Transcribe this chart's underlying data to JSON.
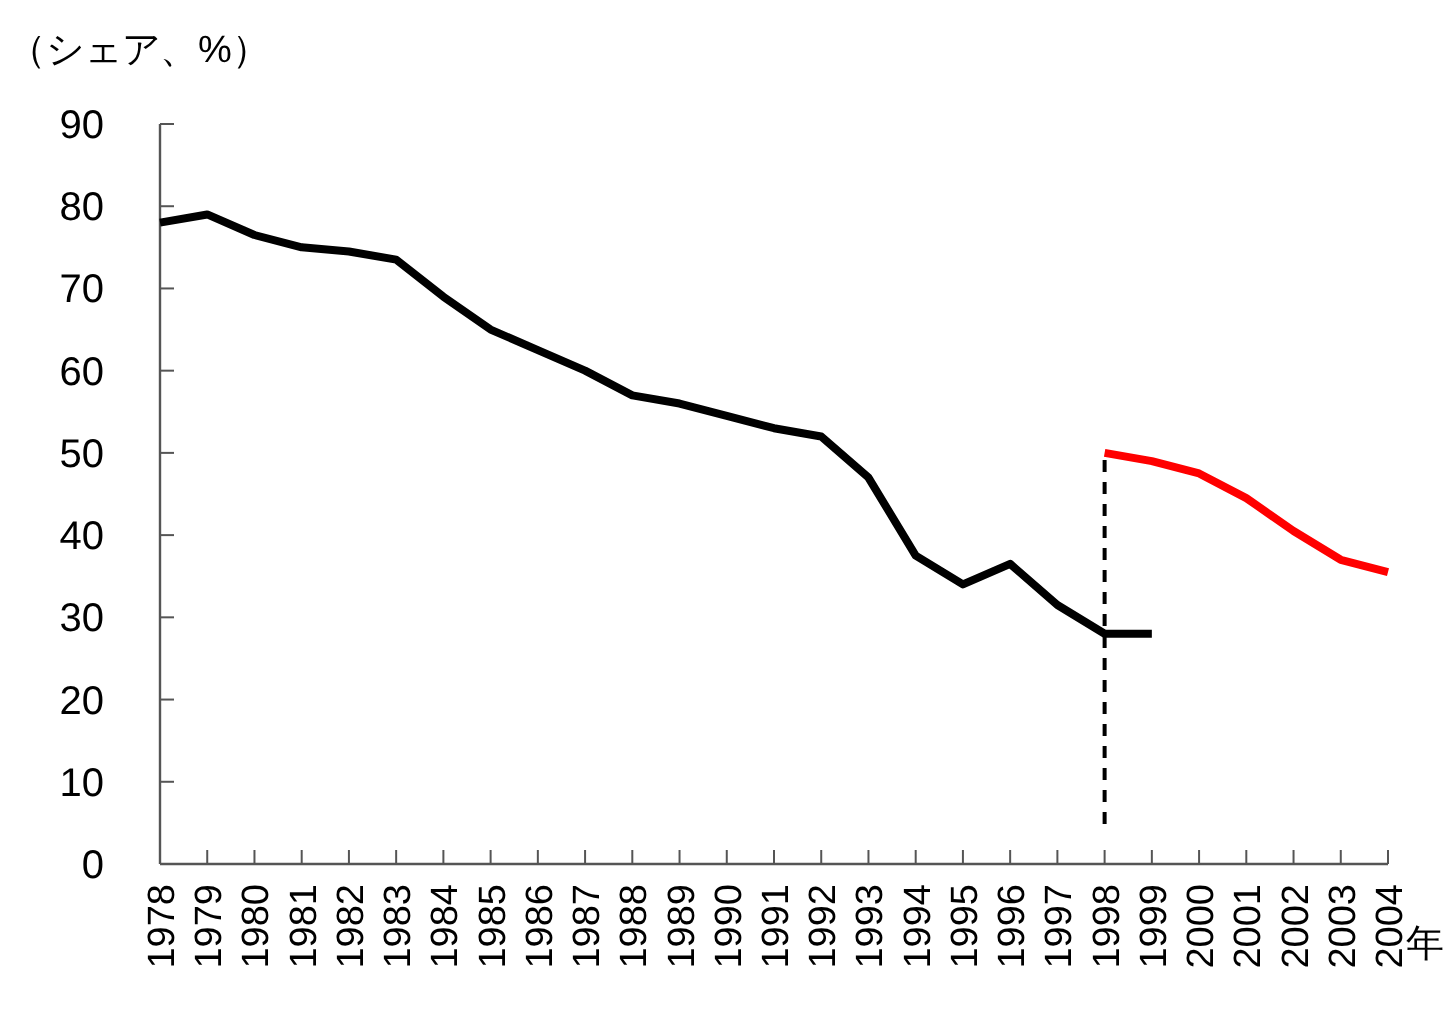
{
  "chart_data": {
    "type": "line",
    "ylabel": "（シェア、%）",
    "xlabel": "年",
    "categories": [
      "1978",
      "1979",
      "1980",
      "1981",
      "1982",
      "1983",
      "1984",
      "1985",
      "1986",
      "1987",
      "1988",
      "1989",
      "1990",
      "1991",
      "1992",
      "1993",
      "1994",
      "1995",
      "1996",
      "1997",
      "1998",
      "1999",
      "2000",
      "2001",
      "2002",
      "2003",
      "2004"
    ],
    "series": [
      {
        "color": "#000000",
        "values": [
          78,
          79,
          76.5,
          75,
          74.5,
          73.5,
          69,
          65,
          62.5,
          60,
          57,
          56,
          54.5,
          53,
          52,
          47,
          37.5,
          34,
          36.5,
          31.5,
          28,
          28,
          null,
          null,
          null,
          null,
          null
        ]
      },
      {
        "color": "#ff0000",
        "values": [
          null,
          null,
          null,
          null,
          null,
          null,
          null,
          null,
          null,
          null,
          null,
          null,
          null,
          null,
          null,
          null,
          null,
          null,
          null,
          null,
          50,
          49,
          47.5,
          44.5,
          40.5,
          37,
          35.5
        ]
      }
    ],
    "ref_lines": [
      {
        "axis": "x",
        "value": "1998",
        "color": "#000000",
        "line_style": "dashed"
      }
    ],
    "ylim": [
      0,
      90
    ],
    "yticks": [
      0,
      10,
      20,
      30,
      40,
      50,
      60,
      70,
      80,
      90
    ],
    "grid": false,
    "marker": "none",
    "line_style": "solid"
  }
}
